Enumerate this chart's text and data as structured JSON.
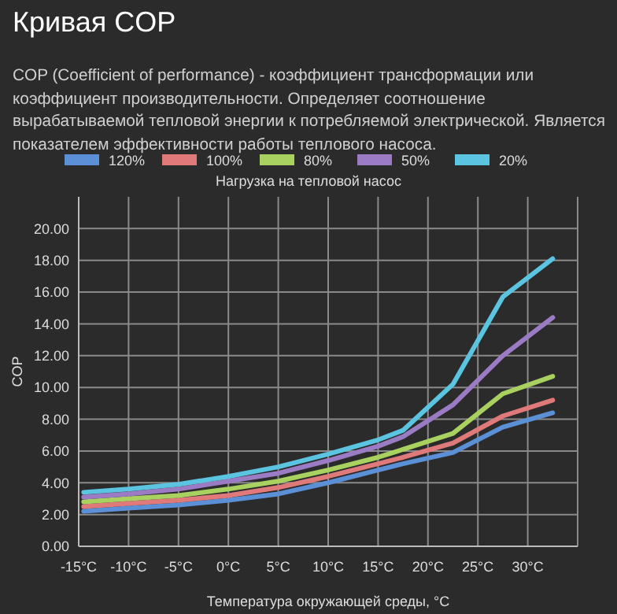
{
  "chart_data": {
    "type": "line",
    "title": "Кривая COP",
    "subtitle": "COP (Coefficient of performance) - коэффициент трансформации или коэффициент производительности. Определяет соотношение вырабатываемой тепловой энергии к потребляемой электрической. Является показателем эффективности работы теплового насоса.",
    "legend_title": "Нагрузка на тепловой насос",
    "xlabel": "Температура окружающей среды, °C",
    "ylabel": "COP",
    "x": [
      -14.5,
      -10,
      -5,
      0,
      5,
      10,
      15,
      17.5,
      22.5,
      27.5,
      32.5
    ],
    "series": [
      {
        "name": "120%",
        "color": "#5b8fd6",
        "values": [
          2.2,
          2.4,
          2.6,
          2.9,
          3.3,
          4.0,
          4.8,
          5.2,
          5.9,
          7.5,
          8.4
        ]
      },
      {
        "name": "100%",
        "color": "#e07a7a",
        "values": [
          2.5,
          2.7,
          2.9,
          3.2,
          3.7,
          4.4,
          5.2,
          5.6,
          6.5,
          8.2,
          9.2
        ]
      },
      {
        "name": "80%",
        "color": "#a8d160",
        "values": [
          2.8,
          3.0,
          3.2,
          3.6,
          4.1,
          4.8,
          5.6,
          6.1,
          7.1,
          9.6,
          10.7
        ]
      },
      {
        "name": "50%",
        "color": "#9b7cc4",
        "values": [
          3.1,
          3.3,
          3.6,
          4.1,
          4.6,
          5.4,
          6.3,
          6.9,
          8.9,
          12.0,
          14.4
        ]
      },
      {
        "name": "20%",
        "color": "#5bc4e0",
        "values": [
          3.4,
          3.6,
          3.9,
          4.4,
          5.0,
          5.8,
          6.7,
          7.3,
          10.2,
          15.7,
          18.1
        ]
      }
    ],
    "xlim": [
      -15,
      35
    ],
    "xticks": [
      {
        "value": -15,
        "label": "-15°C"
      },
      {
        "value": -10,
        "label": "-10°C"
      },
      {
        "value": -5,
        "label": "-5°C"
      },
      {
        "value": 0,
        "label": "0°C"
      },
      {
        "value": 5,
        "label": "5°C"
      },
      {
        "value": 10,
        "label": "10°C"
      },
      {
        "value": 15,
        "label": "15°C"
      },
      {
        "value": 20,
        "label": "20°C"
      },
      {
        "value": 25,
        "label": "25°C"
      },
      {
        "value": 30,
        "label": "30°C"
      },
      {
        "value": 35,
        "label": null
      }
    ],
    "ylim": [
      0,
      22
    ],
    "yticks": [
      {
        "value": 0,
        "label": "0.00"
      },
      {
        "value": 2,
        "label": "2.00"
      },
      {
        "value": 4,
        "label": "4.00"
      },
      {
        "value": 6,
        "label": "6.00"
      },
      {
        "value": 8,
        "label": "8.00"
      },
      {
        "value": 10,
        "label": "10.00"
      },
      {
        "value": 12,
        "label": "12.00"
      },
      {
        "value": 14,
        "label": "14.00"
      },
      {
        "value": 16,
        "label": "16.00"
      },
      {
        "value": 18,
        "label": "18.00"
      },
      {
        "value": 20,
        "label": "20.00"
      }
    ],
    "grid": true,
    "legend": "top",
    "marker": "none",
    "line_style": "solid"
  }
}
